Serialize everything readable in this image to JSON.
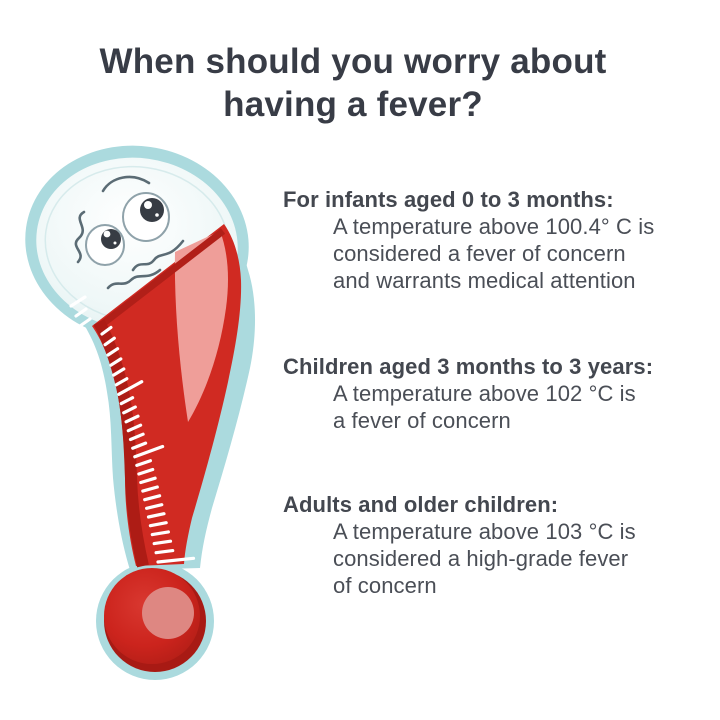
{
  "title": "When should you worry about\nhaving a fever?",
  "sections": [
    {
      "heading": "For infants aged 0 to 3 months:",
      "body": "A temperature above 100.4° C is\nconsidered a fever of concern\nand warrants medical attention"
    },
    {
      "heading": "Children aged 3 months to 3 years:",
      "body": "A temperature above 102 °C is\na fever of concern"
    },
    {
      "heading": "Adults and older children:",
      "body": "A temperature above 103 °C is\nconsidered a high-grade fever\nof concern"
    }
  ],
  "illustration": {
    "icon": "worried-thermometer-icon",
    "colors": {
      "background": "#ffffff",
      "title_text": "#383c46",
      "body_text": "#4a4e56",
      "halo_teal": "#abdade",
      "head_fill": "#eef7f7",
      "mercury_red": "#d02a22",
      "mercury_dark_red": "#ad1c15",
      "mercury_pink_highlight": "#ef9e99",
      "bulb_inner_pink": "#de8782",
      "face_lines": "#5b6c75"
    }
  }
}
